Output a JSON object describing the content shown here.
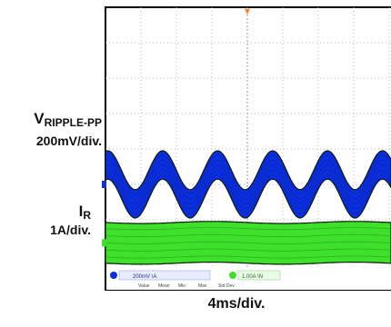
{
  "chart_data": {
    "type": "line",
    "title": "",
    "xlabel": "4ms/div.",
    "grid": true,
    "x_divisions": 10,
    "y_divisions": 8,
    "visible_divisions": 8,
    "series": [
      {
        "name": "VRIPPLE-PP",
        "label_main": "V",
        "label_sub": "RIPPLE-PP",
        "scale": "200mV/div.",
        "color": "#0a2fe0",
        "center_div": 5.0,
        "amplitude_div": 0.55,
        "band_width_div": 0.8,
        "period_div": 1.55,
        "phase_div": 0.45
      },
      {
        "name": "IR",
        "label_main": "I",
        "label_sub": "R",
        "scale": "1A/div.",
        "color": "#3ee02a",
        "center_div": 6.65,
        "amplitude_div": 0.03,
        "band_width_div": 1.15,
        "period_div": 4.0,
        "phase_div": 0
      }
    ],
    "status_bar": {
      "ch1_setting": "200mV \\A",
      "ch2_setting": "1.00A \\N",
      "columns": [
        "Value",
        "Mean",
        "Min",
        "Max",
        "Std Dev"
      ]
    }
  }
}
